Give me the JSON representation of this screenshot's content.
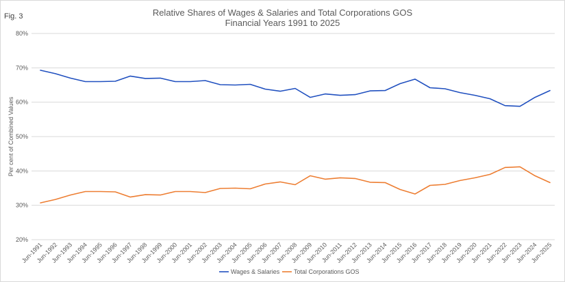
{
  "figure_label": "Fig. 3",
  "chart_data": {
    "type": "line",
    "title": "Relative Shares of Wages & Salaries and Total Corporations GOS",
    "subtitle": "Financial Years 1991 to 2025",
    "xlabel": "",
    "ylabel": "Per cent of Combined Values",
    "ylim": [
      20,
      80
    ],
    "yticks": [
      20,
      30,
      40,
      50,
      60,
      70,
      80
    ],
    "ytick_labels": [
      "20%",
      "30%",
      "40%",
      "50%",
      "60%",
      "70%",
      "80%"
    ],
    "grid": true,
    "legend_position": "bottom",
    "categories": [
      "Jun-1991",
      "Jun-1992",
      "Jun-1993",
      "Jun-1994",
      "Jun-1995",
      "Jun-1996",
      "Jun-1997",
      "Jun-1998",
      "Jun-1999",
      "Jun-2000",
      "Jun-2001",
      "Jun-2002",
      "Jun-2003",
      "Jun-2004",
      "Jun-2005",
      "Jun-2006",
      "Jun-2007",
      "Jun-2008",
      "Jun-2009",
      "Jun-2010",
      "Jun-2011",
      "Jun-2012",
      "Jun-2013",
      "Jun-2014",
      "Jun-2015",
      "Jun-2016",
      "Jun-2017",
      "Jun-2018",
      "Jun-2019",
      "Jun-2020",
      "Jun-2021",
      "Jun-2022",
      "Jun-2023",
      "Jun-2024",
      "Jun-2025"
    ],
    "series": [
      {
        "name": "Wages & Salaries",
        "color": "#1f4fbf",
        "values": [
          69.3,
          68.3,
          67.0,
          66.0,
          66.0,
          66.1,
          67.6,
          66.9,
          67.0,
          66.0,
          66.0,
          66.3,
          65.1,
          65.0,
          65.2,
          63.8,
          63.2,
          64.0,
          61.4,
          62.4,
          62.0,
          62.2,
          63.3,
          63.4,
          65.4,
          66.7,
          64.2,
          63.9,
          62.8,
          62.0,
          61.0,
          59.0,
          58.8,
          61.4,
          63.4
        ]
      },
      {
        "name": "Total Corporations GOS",
        "color": "#ed7d31",
        "values": [
          30.7,
          31.7,
          33.0,
          34.0,
          34.0,
          33.9,
          32.4,
          33.1,
          33.0,
          34.0,
          34.0,
          33.7,
          34.9,
          35.0,
          34.8,
          36.2,
          36.8,
          36.0,
          38.6,
          37.6,
          38.0,
          37.8,
          36.7,
          36.6,
          34.6,
          33.3,
          35.8,
          36.1,
          37.2,
          38.0,
          39.0,
          41.0,
          41.2,
          38.6,
          36.6
        ]
      }
    ]
  }
}
